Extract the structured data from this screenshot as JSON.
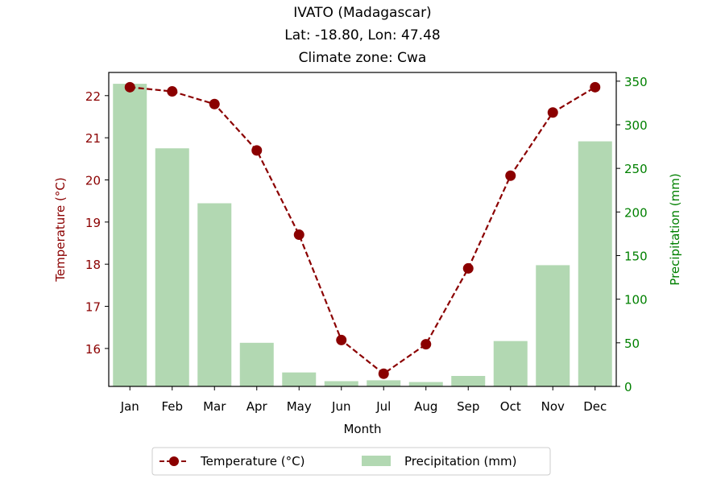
{
  "chart_data": {
    "type": "bar+line",
    "title": [
      "IVATO (Madagascar)",
      "Lat: -18.80, Lon: 47.48",
      "Climate zone: Cwa"
    ],
    "xlabel": "Month",
    "ylabel_left": "Temperature (°C)",
    "ylabel_right": "Precipitation (mm)",
    "categories": [
      "Jan",
      "Feb",
      "Mar",
      "Apr",
      "May",
      "Jun",
      "Jul",
      "Aug",
      "Sep",
      "Oct",
      "Nov",
      "Dec"
    ],
    "temperature": {
      "name": "Temperature (°C)",
      "values": [
        22.2,
        22.1,
        21.8,
        20.7,
        18.7,
        16.2,
        15.4,
        16.1,
        17.9,
        20.1,
        21.6,
        22.2
      ],
      "color": "#8b0000",
      "style": "dashed line with circle markers",
      "ylim": [
        15.1,
        22.55
      ],
      "ticks": [
        16,
        17,
        18,
        19,
        20,
        21,
        22
      ]
    },
    "precipitation": {
      "name": "Precipitation (mm)",
      "values": [
        347,
        273,
        210,
        50,
        16,
        6,
        7,
        5,
        12,
        52,
        139,
        281
      ],
      "color": "#b2d8b2",
      "style": "bars",
      "ylim": [
        0,
        360
      ],
      "ticks": [
        0,
        50,
        100,
        150,
        200,
        250,
        300,
        350
      ]
    },
    "right_axis_color": "#008000",
    "legend_position": "bottom-center",
    "grid": false
  }
}
